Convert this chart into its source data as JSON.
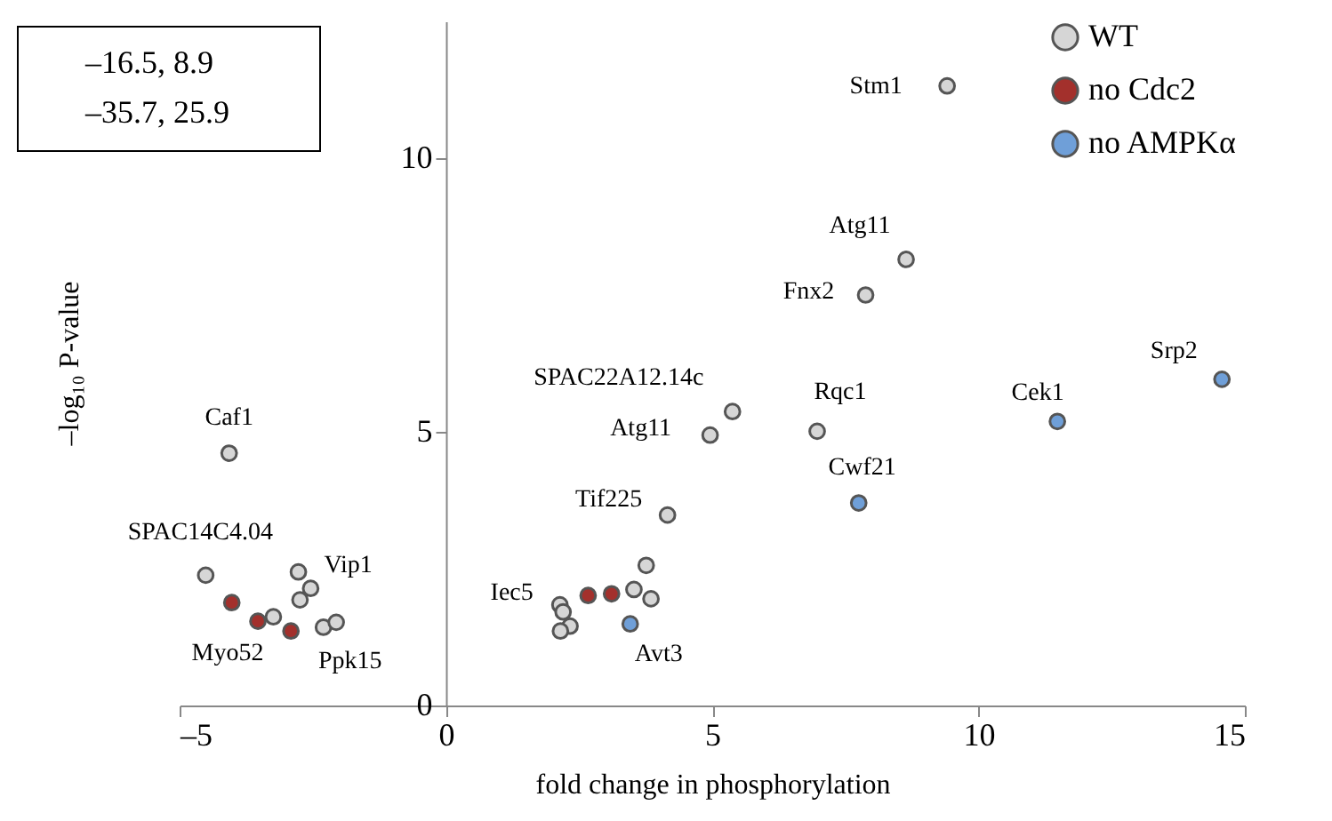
{
  "chart_data": {
    "type": "scatter",
    "xlabel": "fold change in phosphorylation",
    "ylabel": "–log₁₀ P-value",
    "xlim": [
      -5,
      15
    ],
    "xticks": [
      {
        "value": -5,
        "label": "–5"
      },
      0,
      5,
      10,
      15
    ],
    "ylim": [
      0,
      12.5
    ],
    "yticks": [
      0,
      5,
      10
    ],
    "grid": false,
    "legend": "top right",
    "marker": "circle",
    "series": [
      {
        "name": "WT",
        "color": "#d6d6d6",
        "x": [
          -4.07,
          -4.51,
          -2.77,
          -2.54,
          -2.74,
          -3.24,
          -2.3,
          -2.06,
          5.38,
          4.96,
          4.16,
          3.76,
          2.14,
          2.2,
          2.33,
          2.15,
          3.53,
          3.85,
          9.41,
          8.64,
          7.88,
          6.97
        ],
        "values": [
          4.61,
          2.38,
          2.44,
          2.14,
          1.93,
          1.62,
          1.43,
          1.52,
          5.37,
          4.94,
          3.48,
          2.56,
          1.84,
          1.71,
          1.45,
          1.36,
          2.12,
          1.95,
          11.32,
          8.15,
          7.5,
          5.01
        ]
      },
      {
        "name": "no Cdc2",
        "color": "#a3302c",
        "x": [
          -4.02,
          -3.53,
          -2.91,
          2.67,
          3.11
        ],
        "values": [
          1.88,
          1.54,
          1.36,
          2.01,
          2.04
        ]
      },
      {
        "name": "no AMPKα",
        "color": "#6f9fd8",
        "x": [
          3.46,
          7.75,
          11.48,
          14.57
        ],
        "values": [
          1.49,
          3.7,
          5.19,
          5.96
        ]
      }
    ],
    "annotations": [
      {
        "text": "Caf1",
        "x": -4.07,
        "y": 4.61
      },
      {
        "text": "SPAC14C4.04",
        "x": -4.51,
        "y": 2.38
      },
      {
        "text": "Vip1",
        "x": -2.77,
        "y": 2.44
      },
      {
        "text": "Myo52",
        "x": -3.53,
        "y": 1.54
      },
      {
        "text": "Ppk15",
        "x": -2.3,
        "y": 1.43
      },
      {
        "text": "SPAC22A12.14c",
        "x": 5.38,
        "y": 5.37
      },
      {
        "text": "Atg11",
        "x": 4.96,
        "y": 4.94
      },
      {
        "text": "Tif225",
        "x": 4.16,
        "y": 3.48
      },
      {
        "text": "Iec5",
        "x": 2.14,
        "y": 1.84
      },
      {
        "text": "Avt3",
        "x": 3.46,
        "y": 1.49
      },
      {
        "text": "Stm1",
        "x": 9.41,
        "y": 11.32
      },
      {
        "text": "Atg11",
        "x": 8.64,
        "y": 8.15
      },
      {
        "text": "Fnx2",
        "x": 7.88,
        "y": 7.5
      },
      {
        "text": "Rqc1",
        "x": 6.97,
        "y": 5.01
      },
      {
        "text": "Cek1",
        "x": 11.48,
        "y": 5.19
      },
      {
        "text": "Srp2",
        "x": 14.57,
        "y": 5.96
      },
      {
        "text": "Cwf21",
        "x": 7.75,
        "y": 3.7
      },
      "–16.5, 8.9",
      "–35.7, 25.9"
    ]
  }
}
